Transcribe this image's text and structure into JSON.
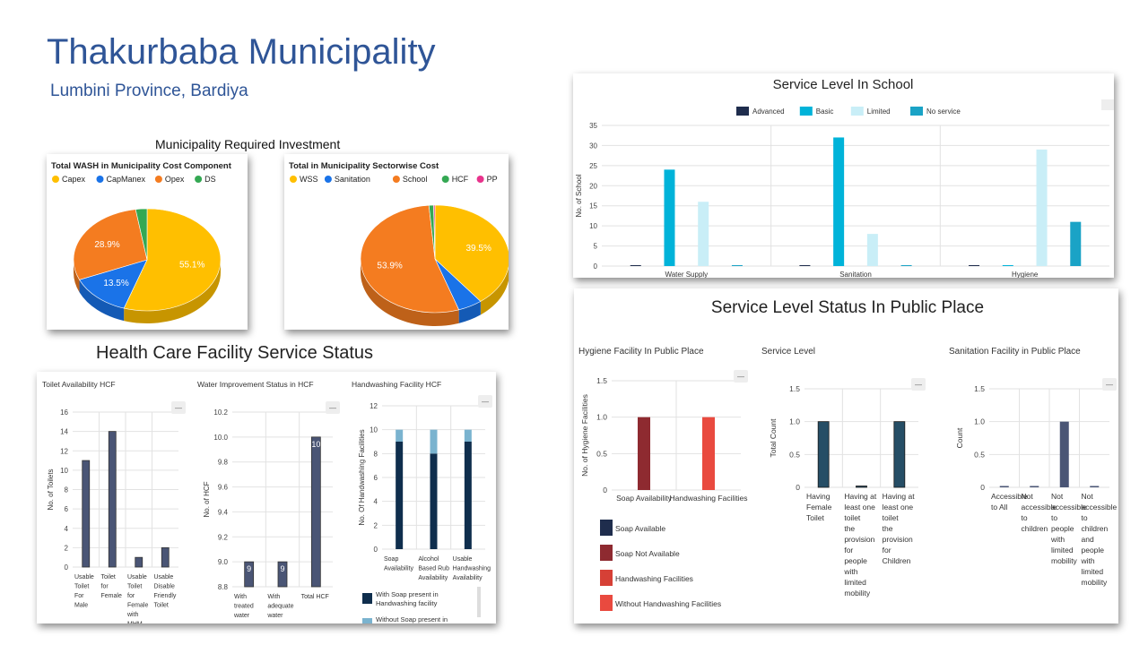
{
  "header": {
    "title": "Thakurbaba Municipality",
    "subtitle": "Lumbini Province, Bardiya"
  },
  "sections": {
    "investment": "Municipality Required Investment",
    "hcf": "Health Care Facility Service Status"
  },
  "colors": {
    "title_blue": "#2f5597",
    "dark_slate": "#4a5575",
    "school_advanced": "#1f2d4d",
    "school_basic": "#00b3d9",
    "school_limited": "#c9eef7",
    "school_noservice": "#1aa3c6"
  },
  "chart_data": [
    {
      "id": "wash_cost",
      "type": "pie",
      "title": "Total WASH in Municipality Cost Component",
      "legend": [
        "Capex",
        "CapManex",
        "Opex",
        "DS"
      ],
      "colors": [
        "#ffbf00",
        "#1a73e8",
        "#f47c20",
        "#34a853"
      ],
      "values": [
        55.1,
        13.5,
        28.9,
        2.5
      ],
      "labels": [
        "55.1%",
        "13.5%",
        "28.9%",
        ""
      ]
    },
    {
      "id": "sector_cost",
      "type": "pie",
      "title": "Total in Municipality Sectorwise Cost",
      "legend": [
        "WSS",
        "Sanitation",
        "School",
        "HCF",
        "PP"
      ],
      "colors": [
        "#ffbf00",
        "#1a73e8",
        "#f47c20",
        "#34a853",
        "#e8338c"
      ],
      "values": [
        39.5,
        5.3,
        53.9,
        1.0,
        0.3
      ],
      "labels": [
        "39.5%",
        "",
        "53.9%",
        "",
        ""
      ]
    },
    {
      "id": "school",
      "type": "bar",
      "title": "Service Level In School",
      "ylabel": "No. of School",
      "categories": [
        "Water Supply",
        "Sanitation",
        "Hygiene"
      ],
      "series": [
        {
          "name": "Advanced",
          "values": [
            0,
            0,
            0
          ]
        },
        {
          "name": "Basic",
          "values": [
            24,
            32,
            0
          ]
        },
        {
          "name": "Limited",
          "values": [
            16,
            8,
            29
          ]
        },
        {
          "name": "No service",
          "values": [
            0,
            0,
            11
          ]
        }
      ],
      "yticks": [
        "0",
        "5",
        "10",
        "15",
        "20",
        "25",
        "30",
        "35"
      ],
      "ylim": [
        0,
        35
      ]
    },
    {
      "id": "toilet_hcf",
      "type": "bar",
      "title": "Toilet Availability HCF",
      "ylabel": "No. of Toilets",
      "categories": [
        "Usable Toilet For Male",
        "Toilet for Female",
        "Usable Toilet for Female with MHM Facility",
        "Usable Disable Friendly Toilet"
      ],
      "values": [
        11,
        14,
        1,
        2
      ],
      "yticks": [
        "0",
        "2",
        "4",
        "6",
        "8",
        "10",
        "12",
        "14",
        "16"
      ],
      "ylim": [
        0,
        16
      ]
    },
    {
      "id": "water_hcf",
      "type": "bar",
      "title": "Water Improvement Status in HCF",
      "ylabel": "No. of HCF",
      "categories": [
        "With treated water",
        "With adequate water",
        "Total HCF"
      ],
      "values": [
        9,
        9,
        10
      ],
      "data_labels": [
        "9",
        "9",
        "10"
      ],
      "yticks": [
        "8.8",
        "9.0",
        "9.2",
        "9.4",
        "9.6",
        "9.8",
        "10.0",
        "10.2"
      ],
      "ylim": [
        8.8,
        10.2
      ]
    },
    {
      "id": "handwash_hcf",
      "type": "bar",
      "title": "Handwashing Facility HCF",
      "ylabel": "No. Of Handwashing Facilities",
      "categories": [
        "Soap Availability",
        "Alcohol Based Rub Availability",
        "Usable Handwashing Availability"
      ],
      "series": [
        {
          "name": "With Soap present in Handwashing facility",
          "values": [
            9,
            8,
            9
          ]
        },
        {
          "name": "Without Soap present in",
          "values": [
            1,
            2,
            1
          ]
        }
      ],
      "yticks": [
        "0",
        "2",
        "4",
        "6",
        "8",
        "10",
        "12"
      ],
      "ylim": [
        0,
        12
      ]
    },
    {
      "id": "hygiene_pp",
      "type": "bar",
      "title": "Hygiene Facility In Public Place",
      "ylabel": "No. of Hygiene Facilities",
      "categories": [
        "Soap Availability",
        "Handwashing Facilities"
      ],
      "values": [
        1,
        1
      ],
      "legend": [
        "Soap Available",
        "Soap Not Available",
        "Handwashing Facilities",
        "Without Handwashing Facilities"
      ],
      "yticks": [
        "0",
        "0.5",
        "1.0",
        "1.5"
      ],
      "ylim": [
        0,
        1.5
      ]
    },
    {
      "id": "service_pp",
      "type": "bar",
      "title": "Service Level",
      "ylabel": "Total Count",
      "categories": [
        "Having Female Toilet",
        "Having at least one toilet the provision for people with limited mobility",
        "Having at least one toilet the provision for Children"
      ],
      "values": [
        1,
        0,
        1
      ],
      "yticks": [
        "0",
        "0.5",
        "1.0",
        "1.5"
      ],
      "ylim": [
        0,
        1.5
      ]
    },
    {
      "id": "sanitation_pp",
      "type": "bar",
      "title": "Sanitation Facility in Public Place",
      "ylabel": "Count",
      "categories": [
        "Accessible to All",
        "Not accessible to children",
        "Not accessible to people with limited mobility",
        "Not accessible to children and people with limited mobility"
      ],
      "values": [
        0,
        0,
        1,
        0
      ],
      "yticks": [
        "0",
        "0.5",
        "1.0",
        "1.5"
      ],
      "ylim": [
        0,
        1.5
      ]
    }
  ],
  "public_place": {
    "title": "Service Level Status In Public Place"
  }
}
